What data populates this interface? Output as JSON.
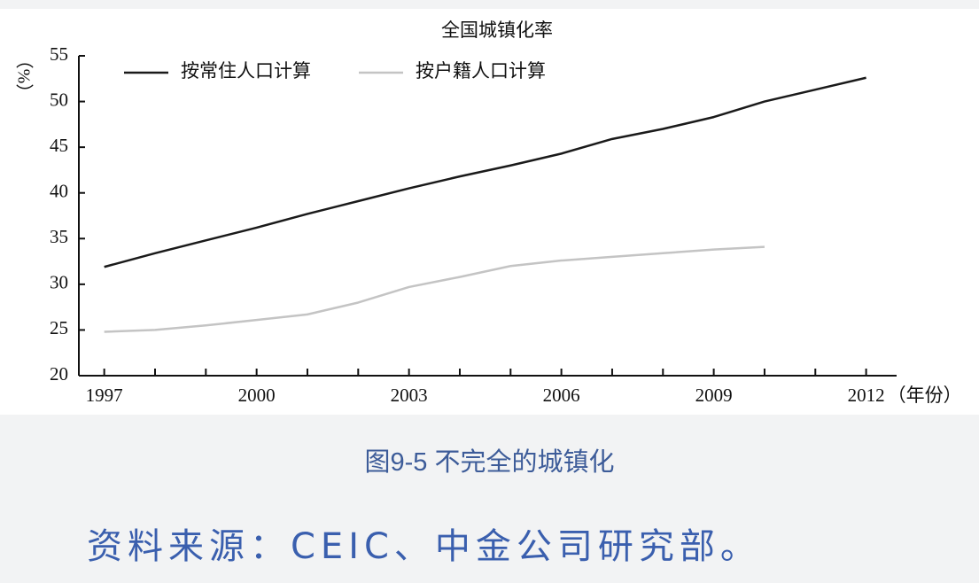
{
  "chart_data": {
    "type": "line",
    "title": "全国城镇化率",
    "x": [
      1997,
      1998,
      1999,
      2000,
      2001,
      2002,
      2003,
      2004,
      2005,
      2006,
      2007,
      2008,
      2009,
      2010,
      2011,
      2012
    ],
    "series": [
      {
        "name": "按常住人口计算",
        "color": "#1a1a1a",
        "values": [
          31.9,
          33.4,
          34.8,
          36.2,
          37.7,
          39.1,
          40.5,
          41.8,
          43.0,
          44.3,
          45.9,
          47.0,
          48.3,
          50.0,
          51.3,
          52.6
        ]
      },
      {
        "name": "按户籍人口计算",
        "color": "#c4c4c4",
        "values": [
          24.8,
          25.0,
          25.5,
          26.1,
          26.7,
          28.0,
          29.7,
          30.8,
          32.0,
          32.6,
          33.0,
          33.4,
          33.8,
          34.1,
          null,
          null
        ]
      }
    ],
    "xlim": [
      1996.5,
      2012.6
    ],
    "xticks": [
      1997,
      2000,
      2003,
      2006,
      2009,
      2012
    ],
    "ylim": [
      20,
      55
    ],
    "yticks": [
      20,
      25,
      30,
      35,
      40,
      45,
      50,
      55
    ],
    "x_label": "（年份）",
    "y_label": "（%）",
    "legend": "top-left",
    "grid": false
  },
  "caption": "图9-5 不完全的城镇化",
  "source": "资料来源：CEIC、中金公司研究部。"
}
